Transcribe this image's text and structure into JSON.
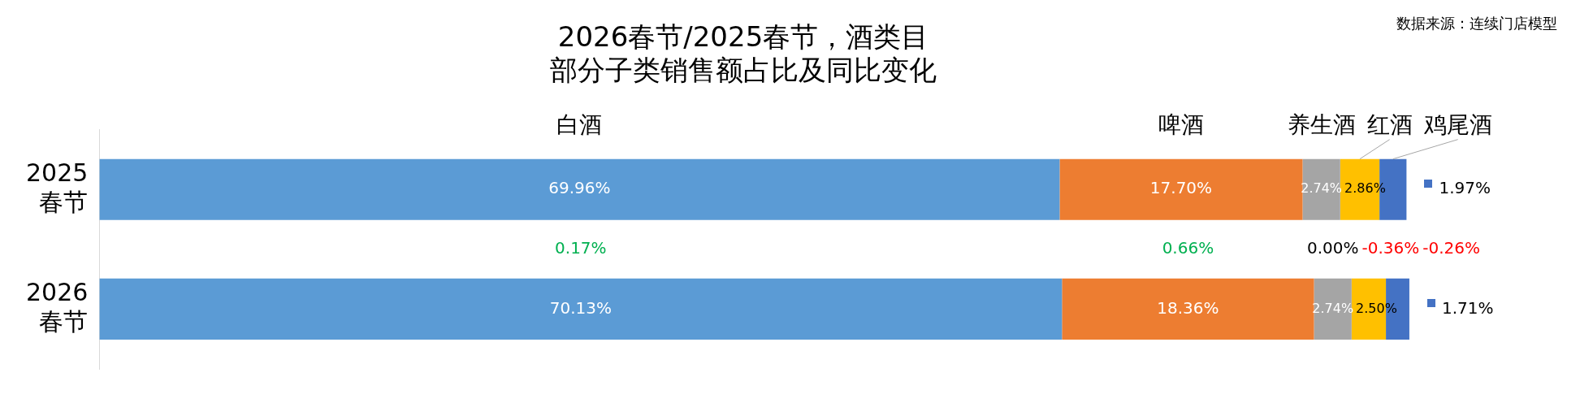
{
  "chart_data": {
    "type": "bar",
    "orientation": "horizontal",
    "stacked": true,
    "title": "2026春节/2025春节，酒类目部分子类销售额占比及同比变化",
    "categories": [
      "2025 春节",
      "2026 春节"
    ],
    "series": [
      {
        "name": "白酒",
        "color": "#5b9bd5",
        "values": [
          69.96,
          70.13
        ],
        "value_labels": [
          "69.96%",
          "70.13%"
        ]
      },
      {
        "name": "啤酒",
        "color": "#ed7d31",
        "values": [
          17.7,
          18.36
        ],
        "value_labels": [
          "17.70%",
          "18.36%"
        ]
      },
      {
        "name": "养生酒",
        "color": "#a5a5a5",
        "values": [
          2.74,
          2.74
        ],
        "value_labels": [
          "2.74%",
          "2.74%"
        ]
      },
      {
        "name": "红酒",
        "color": "#ffc000",
        "values": [
          2.86,
          2.5
        ],
        "value_labels": [
          "2.86%",
          "2.50%"
        ]
      },
      {
        "name": "鸡尾酒",
        "color": "#4472c4",
        "values": [
          1.97,
          1.71
        ],
        "value_labels": [
          "1.97%",
          "1.71%"
        ]
      }
    ],
    "tick_labels": "y",
    "annotations": [
      "0.17%",
      "0.66%",
      "0.00%",
      "-0.36%",
      "-0.26%",
      "数据来源：连续门店模型"
    ]
  }
}
